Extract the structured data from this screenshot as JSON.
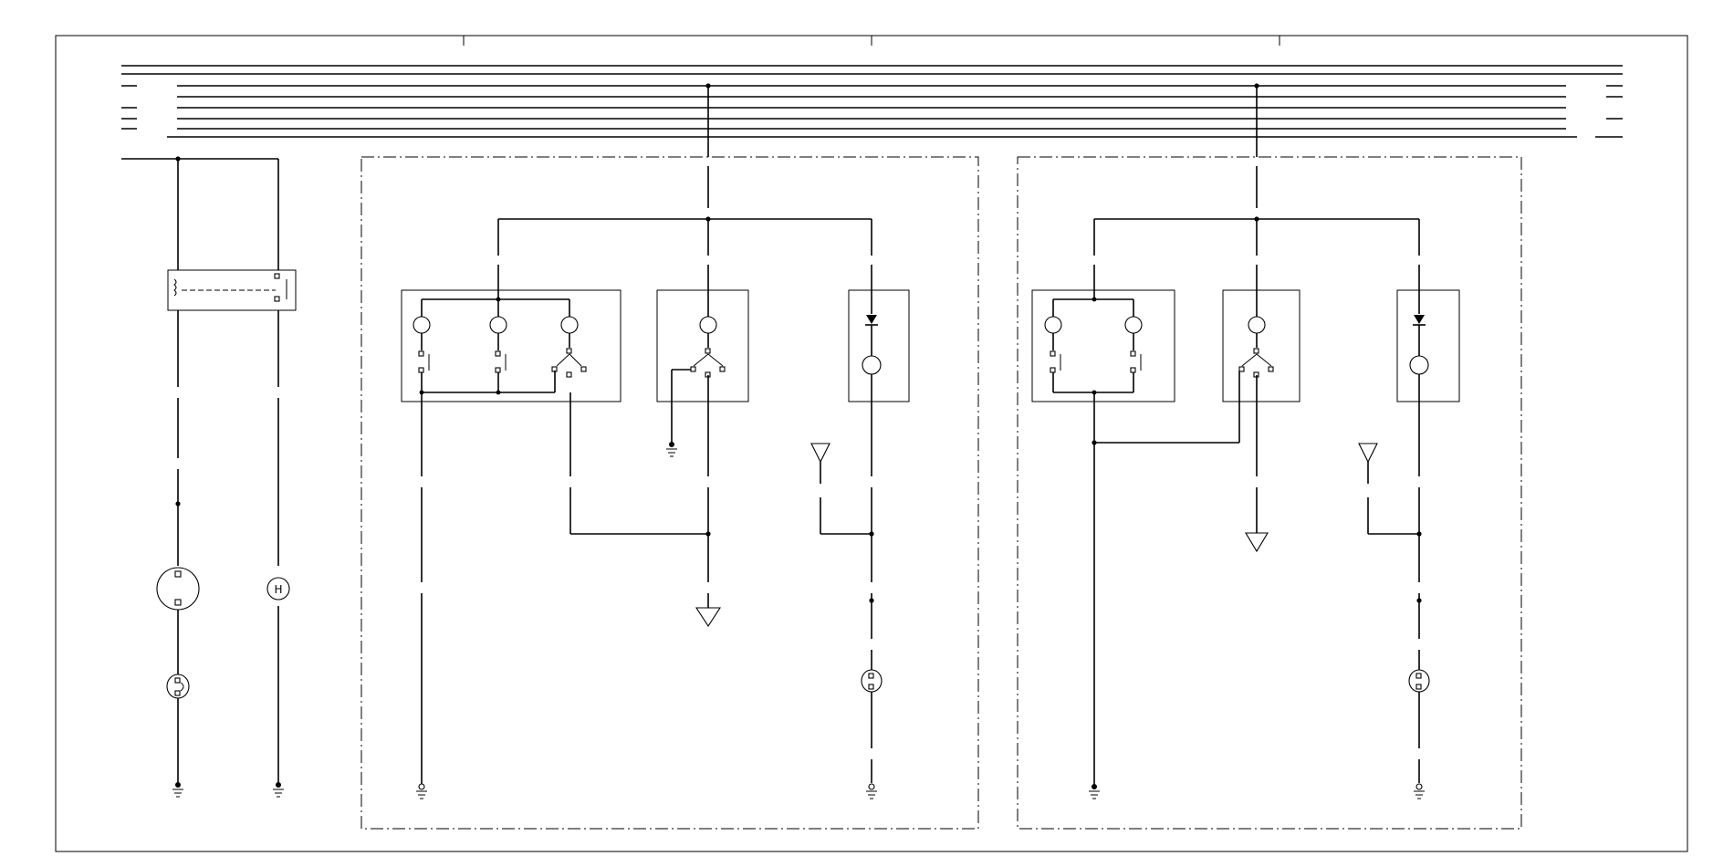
{
  "diagram": {
    "heater_lamp_label": "H"
  }
}
